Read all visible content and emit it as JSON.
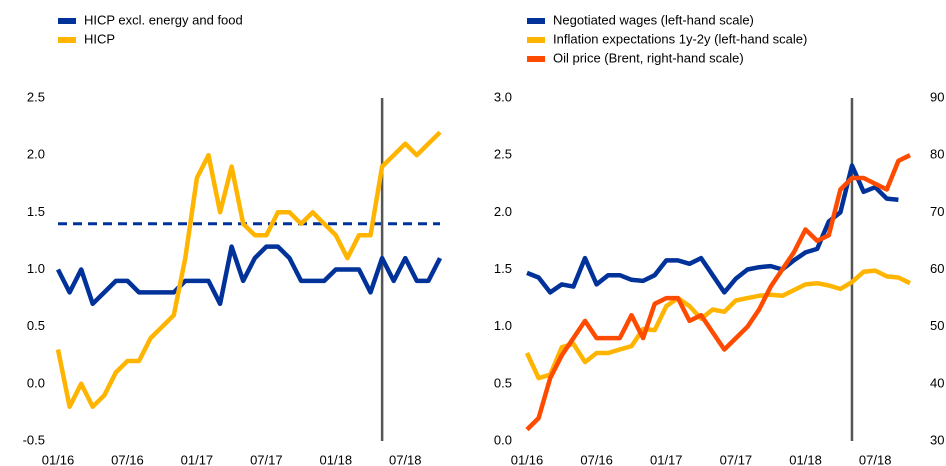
{
  "chart_data": [
    {
      "type": "line",
      "categories": [
        "01/16",
        null,
        null,
        null,
        null,
        null,
        "07/16",
        null,
        null,
        null,
        null,
        null,
        "01/17",
        null,
        null,
        null,
        null,
        null,
        "07/17",
        null,
        null,
        null,
        null,
        null,
        "01/18",
        null,
        null,
        null,
        null,
        null,
        "07/18",
        null,
        null,
        null
      ],
      "series": [
        {
          "name": "HICP excl. energy and food",
          "color": "#003299",
          "values": [
            1.0,
            0.8,
            1.0,
            0.7,
            0.8,
            0.9,
            0.9,
            0.8,
            0.8,
            0.8,
            0.8,
            0.9,
            0.9,
            0.9,
            0.7,
            1.2,
            0.9,
            1.1,
            1.2,
            1.2,
            1.1,
            0.9,
            0.9,
            0.9,
            1.0,
            1.0,
            1.0,
            0.8,
            1.1,
            0.9,
            1.1,
            0.9,
            0.9,
            1.1
          ]
        },
        {
          "name": "HICP",
          "color": "#ffb400",
          "values": [
            0.3,
            -0.2,
            0.0,
            -0.2,
            -0.1,
            0.1,
            0.2,
            0.2,
            0.4,
            0.5,
            0.6,
            1.1,
            1.8,
            2.0,
            1.5,
            1.9,
            1.4,
            1.3,
            1.3,
            1.5,
            1.5,
            1.4,
            1.5,
            1.4,
            1.3,
            1.1,
            1.3,
            1.3,
            1.9,
            2.0,
            2.1,
            2.0,
            2.1,
            2.2
          ]
        }
      ],
      "hline": {
        "value": 1.4,
        "color": "#003299"
      },
      "vline": 28,
      "ylim": [
        -0.5,
        2.5
      ],
      "yticks": [
        -0.5,
        {
          "value": 0,
          "label": "0.0"
        },
        0.5,
        {
          "value": 1,
          "label": "1.0"
        },
        1.5,
        {
          "value": 2,
          "label": "2.0"
        },
        2.5
      ]
    },
    {
      "type": "line",
      "categories": [
        "01/16",
        null,
        null,
        null,
        null,
        null,
        "07/16",
        null,
        null,
        null,
        null,
        null,
        "01/17",
        null,
        null,
        null,
        null,
        null,
        "07/17",
        null,
        null,
        null,
        null,
        null,
        "01/18",
        null,
        null,
        null,
        null,
        null,
        "07/18",
        null,
        null,
        null
      ],
      "series": [
        {
          "name": "Negotiated wages (left-hand scale)",
          "color": "#003299",
          "values": [
            1.47,
            1.43,
            1.3,
            1.37,
            1.35,
            1.6,
            1.37,
            1.45,
            1.45,
            1.41,
            1.4,
            1.45,
            1.58,
            1.58,
            1.55,
            1.6,
            1.45,
            1.3,
            1.42,
            1.5,
            1.52,
            1.53,
            1.5,
            1.58,
            1.65,
            1.68,
            1.92,
            2.0,
            2.41,
            2.18,
            2.22,
            2.12,
            2.11,
            null
          ]
        },
        {
          "name": "Inflation expectations 1y-2y (left-hand scale)",
          "color": "#ffb400",
          "values": [
            0.77,
            0.55,
            0.58,
            0.82,
            0.85,
            0.69,
            0.77,
            0.77,
            0.8,
            0.83,
            0.98,
            0.97,
            1.18,
            1.25,
            1.18,
            1.07,
            1.15,
            1.13,
            1.23,
            1.25,
            1.27,
            1.28,
            1.27,
            1.32,
            1.37,
            1.38,
            1.36,
            1.33,
            1.39,
            1.48,
            1.49,
            1.44,
            1.43,
            1.38
          ]
        },
        {
          "name": "Oil price (Brent, right-hand scale)",
          "color": "#ff4b00",
          "axis": "y2",
          "values": [
            32,
            34,
            41,
            45,
            48,
            51,
            48,
            48,
            48,
            52,
            48,
            54,
            55,
            55,
            51,
            52,
            49,
            46,
            48,
            50,
            53,
            57,
            60,
            63,
            67,
            65,
            66,
            74,
            76,
            76,
            75,
            74,
            79,
            80
          ]
        }
      ],
      "vline": 28,
      "ylim": [
        0,
        3
      ],
      "yticks": [
        {
          "value": 0,
          "label": "0.0"
        },
        0.5,
        {
          "value": 1,
          "label": "1.0"
        },
        1.5,
        {
          "value": 2,
          "label": "2.0"
        },
        2.5,
        {
          "value": 3,
          "label": "3.0"
        }
      ],
      "y2lim": [
        30,
        90
      ],
      "y2ticks": [
        30,
        40,
        50,
        60,
        70,
        80,
        90
      ]
    }
  ]
}
